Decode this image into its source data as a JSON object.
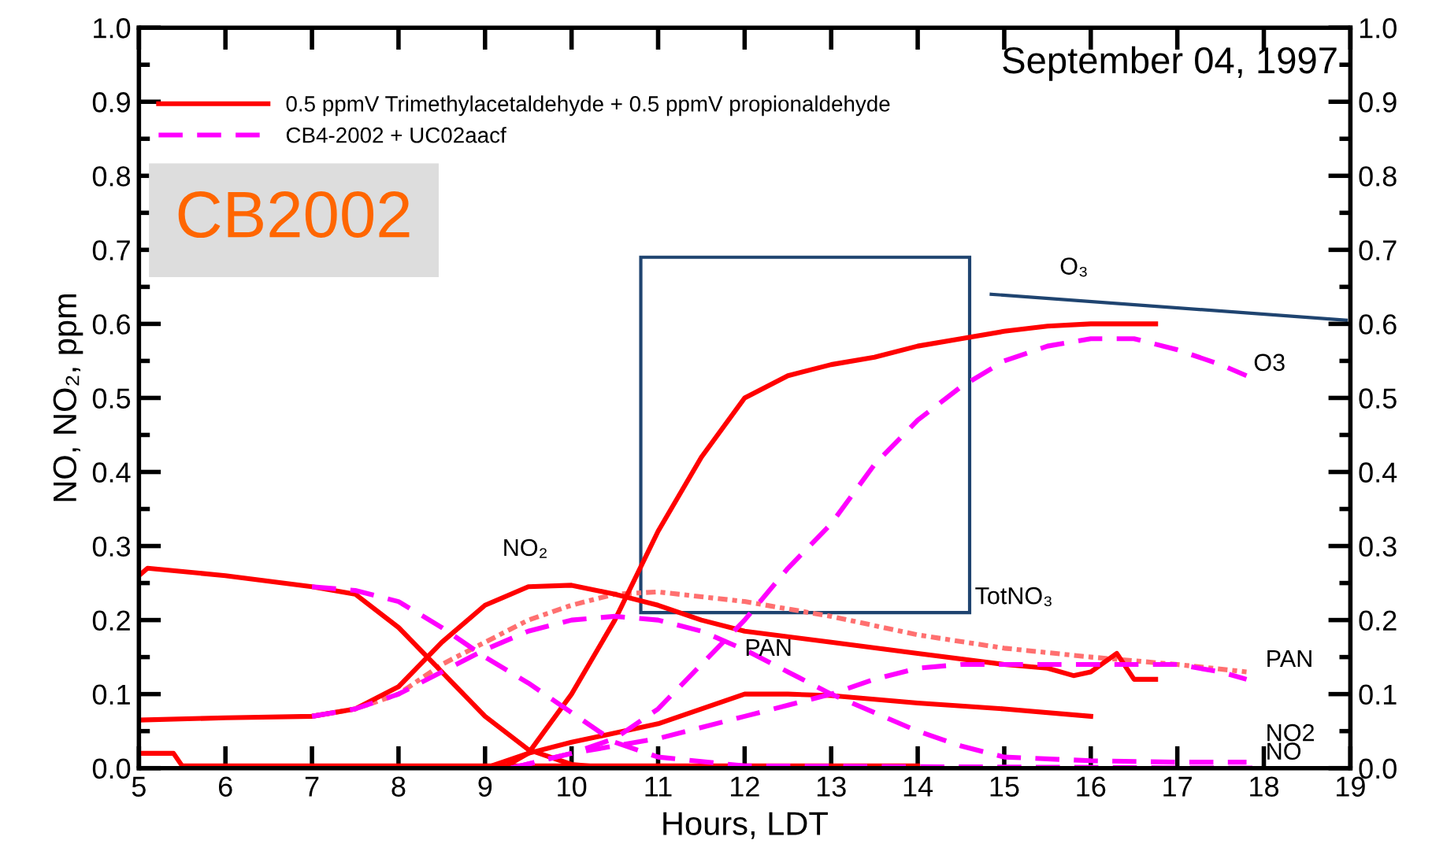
{
  "chart_data": {
    "type": "line",
    "title": "September 04, 1997",
    "xlabel": "Hours, LDT",
    "ylabel": "NO, NO₂, ppm",
    "xlim": [
      5,
      19
    ],
    "xticks": [
      5,
      6,
      7,
      8,
      9,
      10,
      11,
      12,
      13,
      14,
      15,
      16,
      17,
      18,
      19
    ],
    "ylim": [
      0,
      1.0
    ],
    "yticks": [
      {
        "value": 0,
        "label": "0.0"
      },
      0.1,
      0.2,
      0.3,
      0.4,
      0.5,
      0.6,
      0.7,
      0.8,
      0.9,
      {
        "value": 1,
        "label": "1.0"
      }
    ],
    "y2lim": [
      0,
      1.0
    ],
    "y2ticks": [
      {
        "value": 0,
        "label": "0.0"
      },
      0.1,
      0.2,
      0.3,
      0.4,
      0.5,
      0.6,
      0.7,
      0.8,
      0.9,
      {
        "value": 1,
        "label": "1.0"
      }
    ],
    "legend": "top left",
    "annotations": [
      "CB2002",
      "O₃",
      "O3",
      "NO₂",
      "PAN",
      "TotNO₃",
      "PAN",
      "NO2",
      "NO"
    ],
    "series": [
      {
        "name": "0.5 ppmV Trimethylacetaldehyde + 0.5 ppmV propionaldehyde",
        "color": "#ff0000",
        "line_style": "solid",
        "x": [
          9.2,
          9.5,
          10,
          10.5,
          11,
          11.5,
          12,
          12.5,
          13,
          13.5,
          14,
          14.5,
          15,
          15.5,
          16,
          16.75
        ],
        "values": [
          0.0,
          0.02,
          0.1,
          0.2,
          0.32,
          0.42,
          0.5,
          0.53,
          0.545,
          0.555,
          0.57,
          0.58,
          0.59,
          0.597,
          0.6,
          0.6
        ]
      },
      {
        "color": "#ff0000",
        "line_style": "solid",
        "x": [
          5,
          6,
          7,
          7.5,
          8,
          8.5,
          9,
          9.5,
          10,
          10.5,
          11,
          11.5,
          12,
          13,
          14,
          15,
          15.5,
          15.8,
          16,
          16.3,
          16.5,
          16.75
        ],
        "values": [
          0.065,
          0.068,
          0.07,
          0.08,
          0.11,
          0.17,
          0.22,
          0.245,
          0.247,
          0.235,
          0.22,
          0.2,
          0.185,
          0.17,
          0.155,
          0.14,
          0.135,
          0.125,
          0.13,
          0.155,
          0.12,
          0.12
        ]
      },
      {
        "color": "#ff0000",
        "line_style": "solid",
        "x": [
          5,
          5.1,
          6,
          7,
          7.5,
          8,
          8.5,
          9,
          9.5,
          10,
          10.5,
          11
        ],
        "values": [
          0.26,
          0.27,
          0.26,
          0.245,
          0.235,
          0.19,
          0.13,
          0.07,
          0.025,
          0.005,
          0.0,
          0.0
        ]
      },
      {
        "color": "#ff0000",
        "line_style": "solid",
        "x": [
          9,
          9.5,
          10,
          11,
          12,
          12.5,
          13,
          14,
          15,
          16
        ],
        "values": [
          0.0,
          0.02,
          0.035,
          0.06,
          0.1,
          0.1,
          0.098,
          0.088,
          0.08,
          0.07
        ]
      },
      {
        "color": "#ff0000",
        "line_style": "solid",
        "x": [
          5,
          5.4,
          5.5,
          14
        ],
        "values": [
          0.02,
          0.02,
          0.003,
          0.003
        ]
      },
      {
        "name": "CB4-2002 + UC02aacf",
        "color": "#ff00ff",
        "line_style": "dashed",
        "x": [
          9.3,
          10,
          10.5,
          11,
          11.5,
          12,
          12.5,
          13,
          13.5,
          14,
          14.5,
          15,
          15.5,
          16,
          16.5,
          17,
          17.5,
          17.8
        ],
        "values": [
          0.0,
          0.02,
          0.04,
          0.08,
          0.14,
          0.2,
          0.27,
          0.33,
          0.41,
          0.47,
          0.515,
          0.55,
          0.57,
          0.58,
          0.58,
          0.565,
          0.545,
          0.53
        ]
      },
      {
        "color": "#ff00ff",
        "line_style": "dashed",
        "x": [
          7,
          7.5,
          8,
          8.5,
          9,
          9.5,
          10,
          10.5,
          11,
          11.5,
          12,
          12.5,
          13,
          13.5,
          14,
          14.5,
          15,
          16,
          17,
          17.8
        ],
        "values": [
          0.07,
          0.08,
          0.1,
          0.13,
          0.16,
          0.185,
          0.2,
          0.205,
          0.2,
          0.185,
          0.16,
          0.13,
          0.1,
          0.075,
          0.05,
          0.03,
          0.015,
          0.01,
          0.008,
          0.008
        ]
      },
      {
        "color": "#ff00ff",
        "line_style": "dashed",
        "x": [
          7,
          7.5,
          8,
          8.5,
          9,
          9.5,
          10,
          10.5,
          11,
          12,
          18
        ],
        "values": [
          0.245,
          0.24,
          0.225,
          0.19,
          0.15,
          0.115,
          0.075,
          0.035,
          0.015,
          0.003,
          0.0
        ]
      },
      {
        "color": "#ff00ff",
        "line_style": "dashed",
        "x": [
          9.3,
          10,
          11,
          12,
          12.5,
          13,
          13.5,
          14,
          14.5,
          15,
          16,
          17,
          17.5,
          17.8
        ],
        "values": [
          0.0,
          0.02,
          0.04,
          0.07,
          0.085,
          0.1,
          0.12,
          0.135,
          0.14,
          0.14,
          0.14,
          0.14,
          0.13,
          0.12
        ]
      },
      {
        "color": "#ff7070",
        "line_style": "dotted",
        "x": [
          7,
          7.5,
          8,
          8.5,
          9,
          9.5,
          10,
          10.5,
          11,
          12,
          13,
          14,
          15,
          16,
          17,
          17.8
        ],
        "values": [
          0.07,
          0.08,
          0.1,
          0.14,
          0.17,
          0.2,
          0.22,
          0.235,
          0.238,
          0.225,
          0.205,
          0.18,
          0.162,
          0.15,
          0.14,
          0.13
        ]
      }
    ]
  }
}
